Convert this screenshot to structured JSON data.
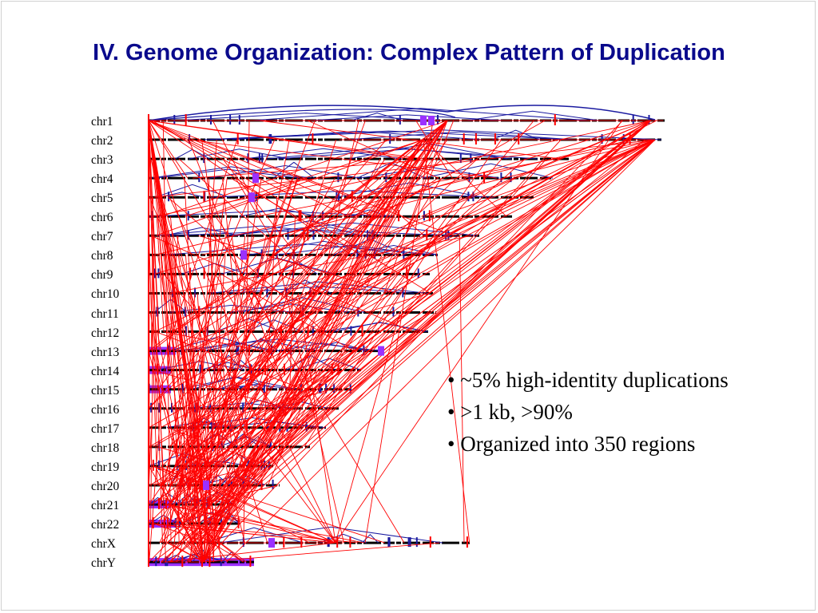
{
  "slide": {
    "title": "IV. Genome Organization: Complex Pattern of Duplication",
    "bullets": [
      "• ~5% high-identity duplications",
      "• >1 kb, >90%",
      "• Organized into 350 regions"
    ]
  },
  "diagram": {
    "chromosomes": [
      "chr1",
      "chr2",
      "chr3",
      "chr4",
      "chr5",
      "chr6",
      "chr7",
      "chr8",
      "chr9",
      "chr10",
      "chr11",
      "chr12",
      "chr13",
      "chr14",
      "chr15",
      "chr16",
      "chr17",
      "chr18",
      "chr19",
      "chr20",
      "chr21",
      "chr22",
      "chrX",
      "chrY"
    ],
    "colors": {
      "chromosome_line": "#000000",
      "intrachromosomal_link": "#1a1aa0",
      "interchromosomal_link": "#ff0000",
      "region_marker": "#9b30ff",
      "label": "#000000",
      "title": "#0a0a8c"
    }
  }
}
